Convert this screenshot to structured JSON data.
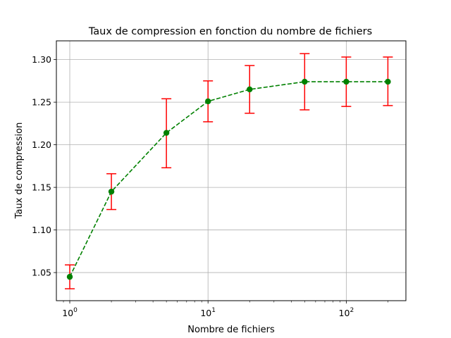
{
  "chart_data": {
    "type": "line",
    "title": "Taux de compression en fonction du nombre de fichiers",
    "xlabel": "Nombre de fichiers",
    "ylabel": "Taux de compression",
    "x_scale": "log",
    "xlim": [
      0.8,
      270
    ],
    "ylim": [
      1.017,
      1.322
    ],
    "grid": true,
    "x_ticks": [
      {
        "value": 1,
        "base": "10",
        "exp": "0"
      },
      {
        "value": 10,
        "base": "10",
        "exp": "1"
      },
      {
        "value": 100,
        "base": "10",
        "exp": "2"
      }
    ],
    "y_ticks": [
      {
        "value": 1.05,
        "label": "1.05"
      },
      {
        "value": 1.1,
        "label": "1.10"
      },
      {
        "value": 1.15,
        "label": "1.15"
      },
      {
        "value": 1.2,
        "label": "1.20"
      },
      {
        "value": 1.25,
        "label": "1.25"
      },
      {
        "value": 1.3,
        "label": "1.30"
      }
    ],
    "series": [
      {
        "line_color": "#008000",
        "marker_color": "#008000",
        "error_color": "#ff0000",
        "line_style": "dashed",
        "marker": "circle",
        "x": [
          1,
          2,
          5,
          10,
          20,
          50,
          100,
          200
        ],
        "y": [
          1.045,
          1.145,
          1.214,
          1.251,
          1.265,
          1.274,
          1.274,
          1.274
        ],
        "err_low": [
          1.031,
          1.124,
          1.173,
          1.227,
          1.237,
          1.241,
          1.245,
          1.246
        ],
        "err_high": [
          1.059,
          1.166,
          1.254,
          1.275,
          1.293,
          1.307,
          1.303,
          1.303
        ]
      }
    ]
  }
}
